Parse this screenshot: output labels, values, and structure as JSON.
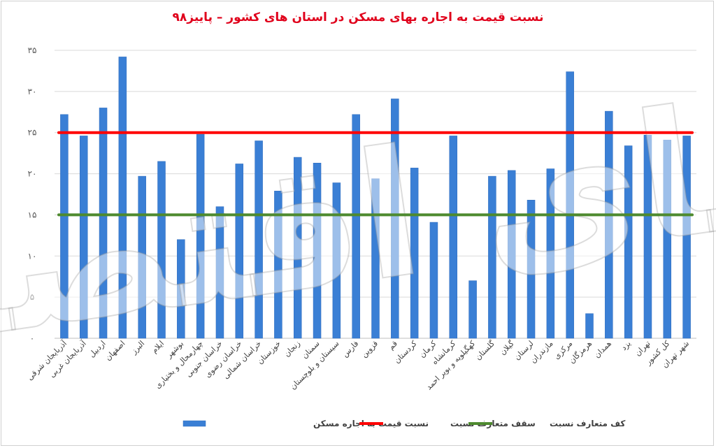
{
  "chart_data": {
    "type": "bar",
    "title": "نسبت قیمت به اجاره بهای مسکن در استان های کشور – پاییز۹۸",
    "ylim": [
      0,
      35
    ],
    "yticks": [
      "۰",
      "۵",
      "۱۰",
      "۱۵",
      "۲۰",
      "۲۵",
      "۳۰",
      "۳۵"
    ],
    "ytick_values": [
      0,
      5,
      10,
      15,
      20,
      25,
      30,
      35
    ],
    "grid": true,
    "legend_position": "bottom",
    "categories": [
      "آذربایجان شرقی",
      "آذربایجان غربی",
      "اردبیل",
      "اصفهان",
      "البرز",
      "ایلام",
      "بوشهر",
      "چهارمحال و بختیاری",
      "خراسان جنوبی",
      "خراسان رضوی",
      "خراسان شمالی",
      "خوزستان",
      "زنجان",
      "سمنان",
      "سیستان و بلوچستان",
      "فارس",
      "قزوین",
      "قم",
      "کردستان",
      "کرمان",
      "کرمانشاه",
      "کهگیلویه و بویر احمد",
      "گلستان",
      "گیلان",
      "لرستان",
      "مازندران",
      "مرکزی",
      "هرمزگان",
      "همدان",
      "یزد",
      "تهران",
      "کل کشور",
      "شهر تهران"
    ],
    "series": [
      {
        "name": "نسبت قیمت به اجاره مسکن",
        "color": "#3a7fd5",
        "values": [
          27.2,
          24.6,
          28.0,
          34.2,
          19.7,
          21.5,
          12.0,
          24.8,
          16.0,
          21.2,
          24.0,
          17.9,
          22.0,
          21.3,
          18.9,
          27.2,
          19.4,
          29.1,
          20.7,
          14.1,
          24.6,
          7.0,
          19.7,
          20.4,
          16.8,
          20.6,
          32.4,
          3.0,
          27.6,
          23.4,
          24.7,
          24.1,
          24.6
        ]
      }
    ],
    "reference_lines": [
      {
        "name": "سقف متعارف نسبت",
        "value": 25,
        "color": "#ff0000"
      },
      {
        "name": "کف متعارف نسبت",
        "value": 15,
        "color": "#4e8a2f"
      }
    ],
    "legend": [
      {
        "label": "نسبت قیمت به اجاره مسکن",
        "kind": "bar",
        "color": "#3a7fd5"
      },
      {
        "label": "سقف متعارف نسبت",
        "kind": "line",
        "color": "#ff0000"
      },
      {
        "label": "کف متعارف نسبت",
        "kind": "line",
        "color": "#4e8a2f"
      }
    ]
  },
  "watermark": "دنیای اقتصاد"
}
